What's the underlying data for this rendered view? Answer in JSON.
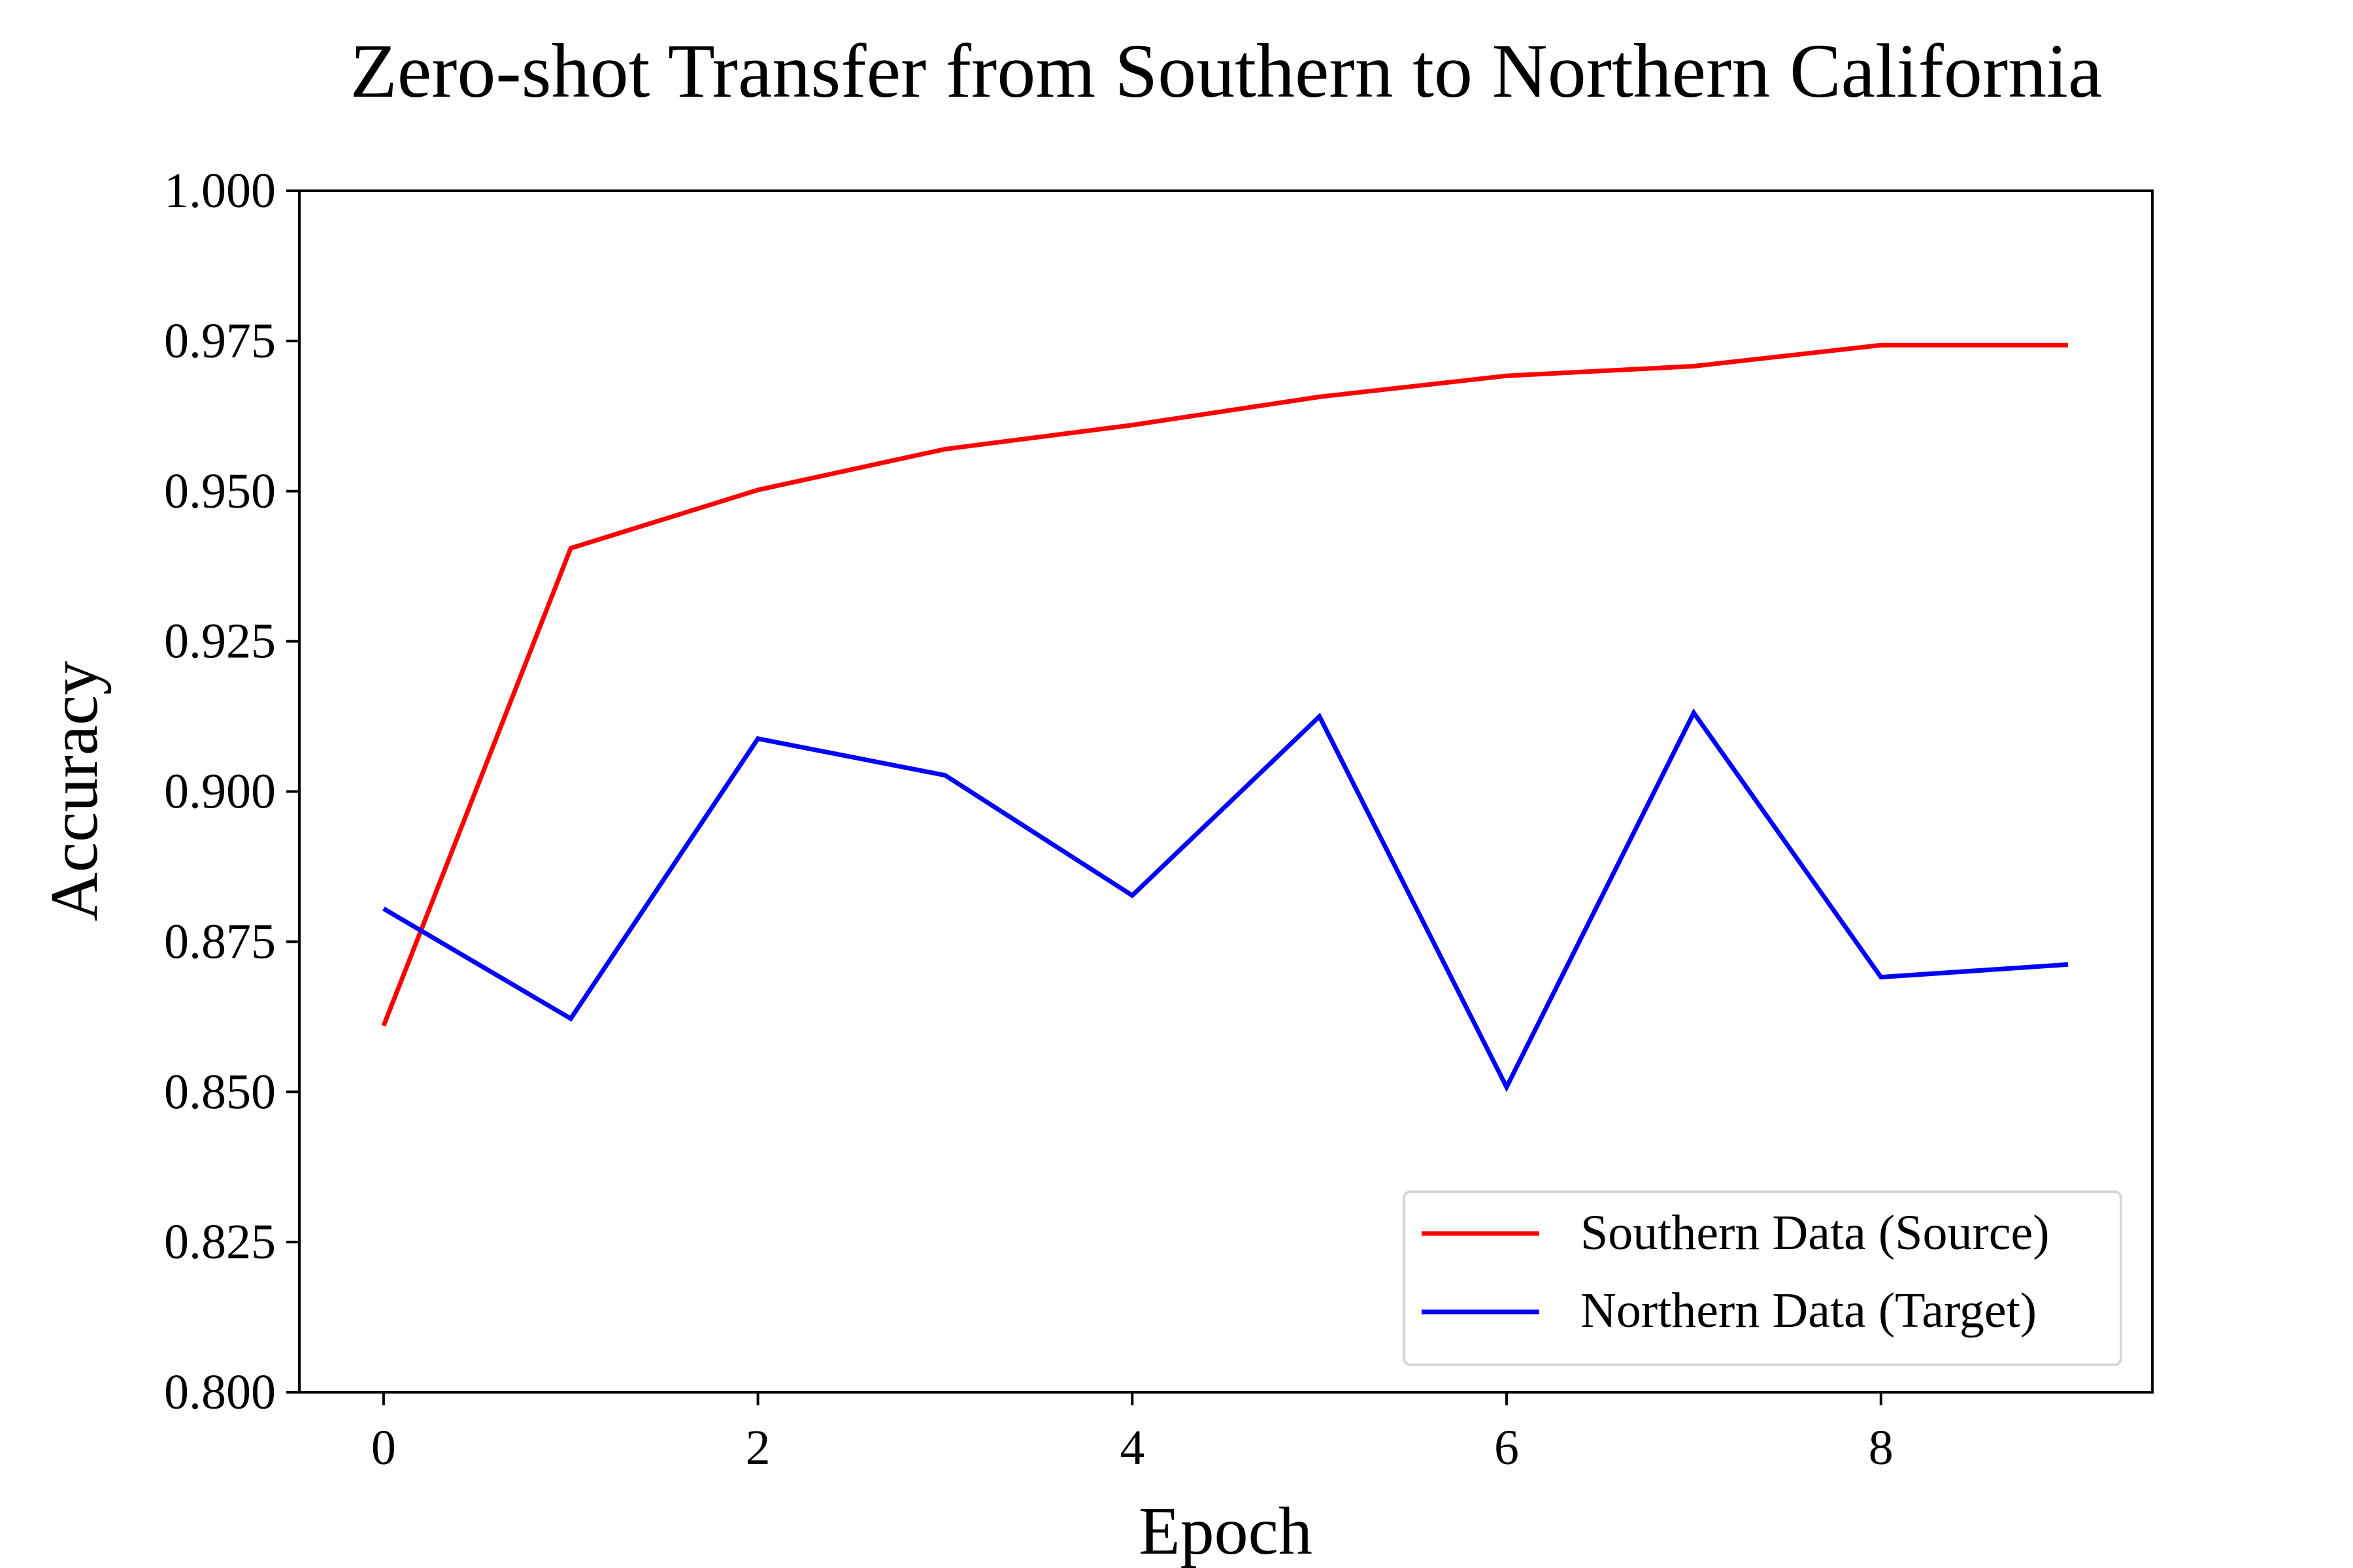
{
  "chart_data": {
    "type": "line",
    "title": "Zero-shot Transfer from Southern to Northern California",
    "xlabel": "Epoch",
    "ylabel": "Accuracy",
    "xlim": [
      -0.45,
      9.45
    ],
    "ylim": [
      0.8,
      1.0
    ],
    "xticks": [
      0,
      2,
      4,
      6,
      8
    ],
    "xtick_labels": [
      "0",
      "2",
      "4",
      "6",
      "8"
    ],
    "yticks": [
      0.8,
      0.825,
      0.85,
      0.875,
      0.9,
      0.925,
      0.95,
      0.975,
      1.0
    ],
    "ytick_labels": [
      "0.800",
      "0.825",
      "0.850",
      "0.875",
      "0.900",
      "0.925",
      "0.950",
      "0.975",
      "1.000"
    ],
    "grid": false,
    "legend_position": "lower-right",
    "x": [
      0,
      1,
      2,
      3,
      4,
      5,
      6,
      7,
      8,
      9
    ],
    "series": [
      {
        "name": "Southern Data (Source)",
        "color": "#ff0000",
        "values": [
          0.861,
          0.9405,
          0.9502,
          0.957,
          0.961,
          0.9657,
          0.9692,
          0.9708,
          0.9743,
          0.9743
        ]
      },
      {
        "name": "Northern Data (Target)",
        "color": "#0000ff",
        "values": [
          0.8805,
          0.8622,
          0.9088,
          0.9027,
          0.8827,
          0.9125,
          0.8508,
          0.9131,
          0.8691,
          0.8712
        ]
      }
    ]
  }
}
